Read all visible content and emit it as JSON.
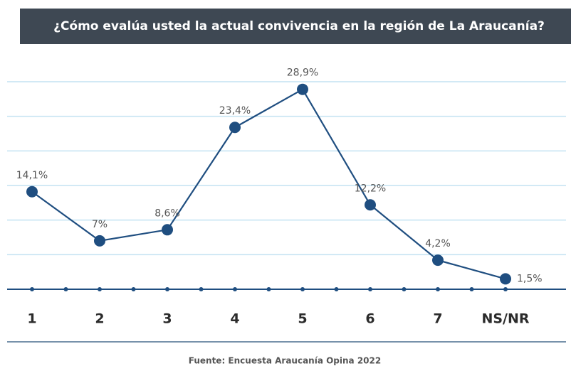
{
  "chart_data": {
    "type": "line",
    "title": "¿Cómo evalúa usted la actual convivencia en la región de La Araucanía?",
    "categories": [
      "1",
      "2",
      "3",
      "4",
      "5",
      "6",
      "7",
      "NS/NR"
    ],
    "series": [
      {
        "color": "#1f4e80",
        "values": [
          14.1,
          7,
          8.6,
          23.4,
          28.9,
          12.2,
          4.2,
          1.5
        ],
        "value_labels": [
          "14,1%",
          "7%",
          "8,6%",
          "23,4%",
          "28,9%",
          "12,2%",
          "4,2%",
          "1,5%"
        ]
      }
    ],
    "ylim": [
      0,
      30
    ],
    "yticks": [
      0,
      5,
      10,
      15,
      20,
      25,
      30
    ],
    "grid": true,
    "source": "Fuente: Encuesta Araucanía Opina 2022"
  }
}
